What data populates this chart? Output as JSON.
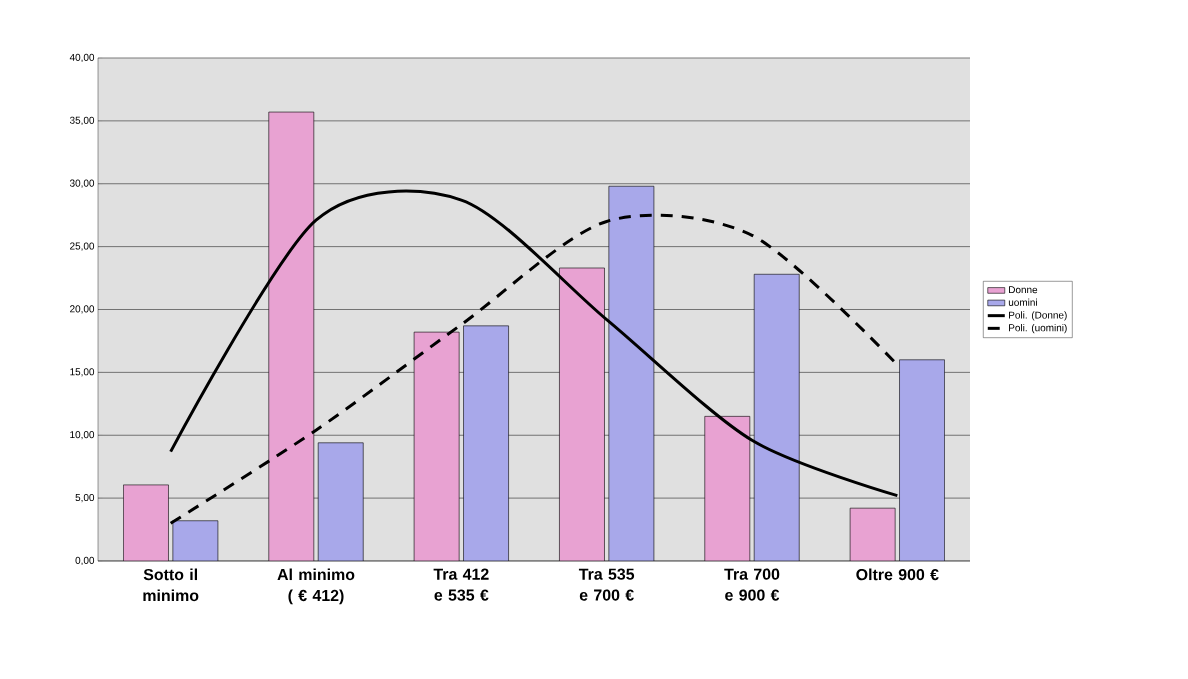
{
  "chart_data": {
    "type": "bar",
    "categories": [
      "Sotto il minimo",
      "Al minimo ( € 412)",
      "Tra 412 e 535 €",
      "Tra 535 e 700 €",
      "Tra 700 e 900 €",
      "Oltre 900 €"
    ],
    "series": [
      {
        "name": "Donne",
        "color": "#e8a2d2",
        "values": [
          6.05,
          35.7,
          18.2,
          23.3,
          11.5,
          4.2
        ]
      },
      {
        "name": "uomini",
        "color": "#a8a8ea",
        "values": [
          3.2,
          9.4,
          18.7,
          29.8,
          22.8,
          16.0
        ]
      },
      {
        "name": "Poli. (Donne)",
        "type": "line",
        "color": "#000000",
        "line_style": "solid",
        "values": [
          8.7,
          27.1,
          28.7,
          19.2,
          9.6,
          5.2
        ]
      },
      {
        "name": "Poli. (uomini)",
        "type": "line",
        "color": "#000000",
        "line_style": "dashed",
        "values": [
          3.0,
          10.4,
          18.8,
          27.0,
          25.9,
          15.6
        ]
      }
    ],
    "ylim": [
      0,
      40
    ],
    "yticks": [
      {
        "value": 0,
        "label": "0,00"
      },
      {
        "value": 5,
        "label": "5,00"
      },
      {
        "value": 10,
        "label": "10,00"
      },
      {
        "value": 15,
        "label": "15,00"
      },
      {
        "value": 20,
        "label": "20,00"
      },
      {
        "value": 25,
        "label": "25,00"
      },
      {
        "value": 30,
        "label": "30,00"
      },
      {
        "value": 35,
        "label": "35,00"
      },
      {
        "value": 40,
        "label": "40,00"
      }
    ],
    "grid": "y",
    "legend": "right",
    "marker": "none"
  }
}
